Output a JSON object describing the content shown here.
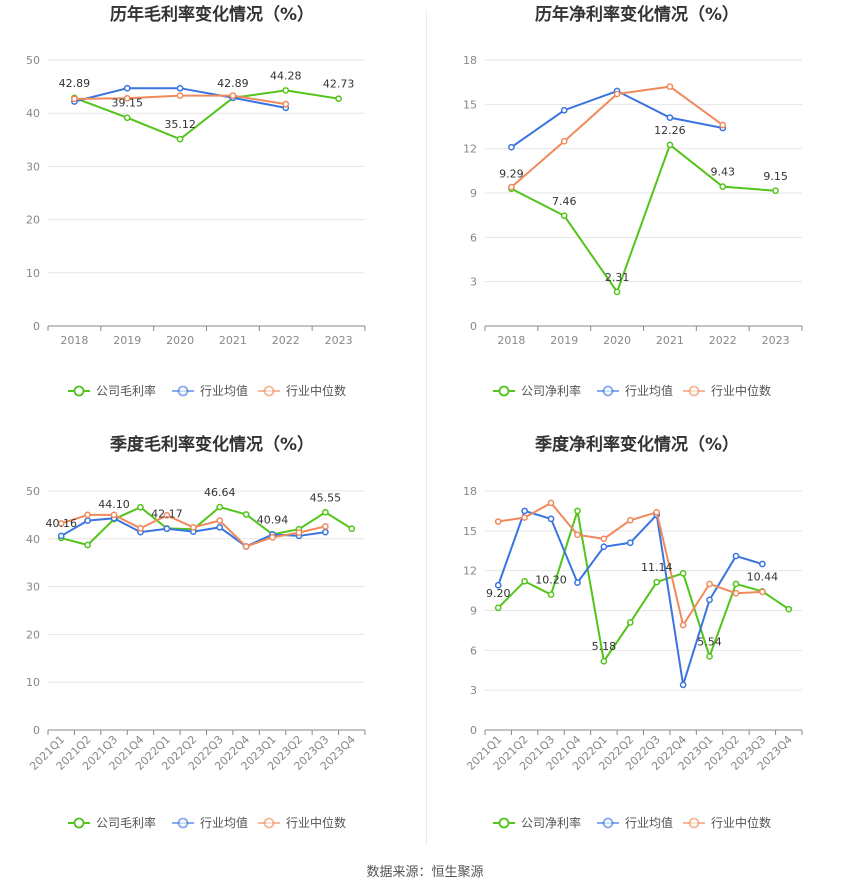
{
  "footer": {
    "source": "数据来源：恒生聚源"
  },
  "colors": {
    "company": "#52c41a",
    "avg": "#3a74e0",
    "median": "#f08a5d"
  },
  "chart_data": [
    {
      "type": "line",
      "title": "历年毛利率变化情况（%）",
      "categories": [
        "2018",
        "2019",
        "2020",
        "2021",
        "2022",
        "2023"
      ],
      "ylim": [
        0,
        50
      ],
      "yticks": [
        0,
        10,
        20,
        30,
        40,
        50
      ],
      "grid": true,
      "legend_position": "bottom",
      "series": [
        {
          "name": "公司毛利率",
          "color": "#52c41a",
          "values": [
            42.89,
            39.15,
            35.12,
            42.89,
            44.28,
            42.73
          ]
        },
        {
          "name": "行业均值",
          "color": "#3a74e0",
          "values": [
            42.2,
            44.7,
            44.7,
            42.9,
            41.0,
            null
          ]
        },
        {
          "name": "行业中位数",
          "color": "#f08a5d",
          "values": [
            42.7,
            42.8,
            43.3,
            43.3,
            41.7,
            null
          ]
        }
      ],
      "labels": [
        {
          "i": 0,
          "text": "42.89"
        },
        {
          "i": 1,
          "text": "39.15"
        },
        {
          "i": 2,
          "text": "35.12"
        },
        {
          "i": 3,
          "text": "42.89"
        },
        {
          "i": 4,
          "text": "44.28"
        },
        {
          "i": 5,
          "text": "42.73"
        }
      ]
    },
    {
      "type": "line",
      "title": "历年净利率变化情况（%）",
      "categories": [
        "2018",
        "2019",
        "2020",
        "2021",
        "2022",
        "2023"
      ],
      "ylim": [
        0,
        18
      ],
      "yticks": [
        0,
        3,
        6,
        9,
        12,
        15,
        18
      ],
      "grid": true,
      "legend_position": "bottom",
      "series": [
        {
          "name": "公司净利率",
          "color": "#52c41a",
          "values": [
            9.29,
            7.46,
            2.31,
            12.26,
            9.43,
            9.15
          ]
        },
        {
          "name": "行业均值",
          "color": "#3a74e0",
          "values": [
            12.1,
            14.6,
            15.9,
            14.1,
            13.4,
            null
          ]
        },
        {
          "name": "行业中位数",
          "color": "#f08a5d",
          "values": [
            9.4,
            12.5,
            15.7,
            16.2,
            13.6,
            null
          ]
        }
      ],
      "labels": [
        {
          "i": 0,
          "text": "9.29"
        },
        {
          "i": 1,
          "text": "7.46"
        },
        {
          "i": 2,
          "text": "2.31"
        },
        {
          "i": 3,
          "text": "12.26"
        },
        {
          "i": 4,
          "text": "9.43"
        },
        {
          "i": 5,
          "text": "9.15"
        }
      ]
    },
    {
      "type": "line",
      "title": "季度毛利率变化情况（%）",
      "categories": [
        "2021Q1",
        "2021Q2",
        "2021Q3",
        "2021Q4",
        "2022Q1",
        "2022Q2",
        "2022Q3",
        "2022Q4",
        "2023Q1",
        "2023Q2",
        "2023Q3",
        "2023Q4"
      ],
      "ylim": [
        0,
        50
      ],
      "yticks": [
        0,
        10,
        20,
        30,
        40,
        50
      ],
      "grid": true,
      "legend_position": "bottom",
      "series": [
        {
          "name": "公司毛利率",
          "color": "#52c41a",
          "values": [
            40.16,
            38.7,
            44.1,
            46.6,
            42.17,
            42.0,
            46.64,
            45.1,
            40.94,
            42.0,
            45.55,
            42.1
          ]
        },
        {
          "name": "行业均值",
          "color": "#3a74e0",
          "values": [
            40.6,
            43.8,
            44.3,
            41.4,
            42.1,
            41.5,
            42.4,
            38.4,
            40.9,
            40.6,
            41.4,
            null
          ]
        },
        {
          "name": "行业中位数",
          "color": "#f08a5d",
          "values": [
            43.2,
            45.0,
            45.0,
            42.2,
            44.9,
            42.4,
            43.8,
            38.4,
            40.3,
            41.3,
            42.6,
            null
          ]
        }
      ],
      "labels": [
        {
          "i": 0,
          "text": "40.16"
        },
        {
          "i": 2,
          "text": "44.10"
        },
        {
          "i": 4,
          "text": "42.17"
        },
        {
          "i": 6,
          "text": "46.64"
        },
        {
          "i": 8,
          "text": "40.94"
        },
        {
          "i": 10,
          "text": "45.55"
        }
      ]
    },
    {
      "type": "line",
      "title": "季度净利率变化情况（%）",
      "categories": [
        "2021Q1",
        "2021Q2",
        "2021Q3",
        "2021Q4",
        "2022Q1",
        "2022Q2",
        "2022Q3",
        "2022Q4",
        "2023Q1",
        "2023Q2",
        "2023Q3",
        "2023Q4"
      ],
      "ylim": [
        0,
        18
      ],
      "yticks": [
        0,
        3,
        6,
        9,
        12,
        15,
        18
      ],
      "grid": true,
      "legend_position": "bottom",
      "series": [
        {
          "name": "公司净利率",
          "color": "#52c41a",
          "values": [
            9.2,
            11.2,
            10.2,
            16.5,
            5.18,
            8.1,
            11.14,
            11.8,
            5.54,
            11.0,
            10.44,
            9.1
          ]
        },
        {
          "name": "行业均值",
          "color": "#3a74e0",
          "values": [
            10.9,
            16.5,
            15.9,
            11.1,
            13.8,
            14.1,
            16.2,
            3.4,
            9.8,
            13.1,
            12.5,
            null
          ]
        },
        {
          "name": "行业中位数",
          "color": "#f08a5d",
          "values": [
            15.7,
            16.0,
            17.1,
            14.7,
            14.4,
            15.8,
            16.4,
            7.9,
            11.0,
            10.3,
            10.4,
            null
          ]
        }
      ],
      "labels": [
        {
          "i": 0,
          "text": "9.20"
        },
        {
          "i": 2,
          "text": "10.20"
        },
        {
          "i": 4,
          "text": "5.18"
        },
        {
          "i": 6,
          "text": "11.14"
        },
        {
          "i": 8,
          "text": "5.54"
        },
        {
          "i": 10,
          "text": "10.44"
        }
      ]
    }
  ]
}
